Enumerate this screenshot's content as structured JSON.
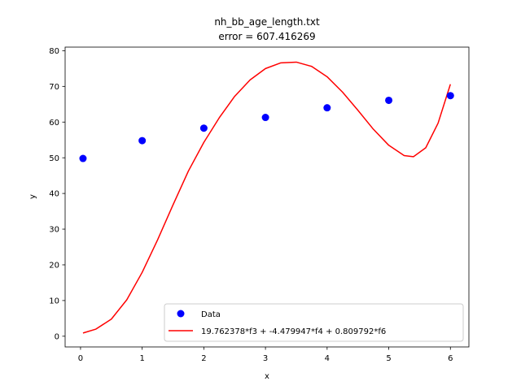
{
  "chart_data": {
    "type": "scatter",
    "title_line1": "nh_bb_age_length.txt",
    "title_line2": " error  = 607.416269",
    "xlabel": "x",
    "ylabel": "y",
    "xlim": [
      -0.25,
      6.3
    ],
    "ylim": [
      -3,
      81
    ],
    "xticks": [
      0,
      1,
      2,
      3,
      4,
      5,
      6
    ],
    "yticks": [
      0,
      10,
      20,
      30,
      40,
      50,
      60,
      70,
      80
    ],
    "grid": false,
    "legend_position": "lower-right",
    "series": [
      {
        "name": "Data",
        "kind": "scatter",
        "color": "#0000ff",
        "x": [
          0.04,
          1,
          2,
          3,
          4,
          5,
          6
        ],
        "y": [
          49.8,
          54.8,
          58.3,
          61.3,
          64,
          66.1,
          67.4
        ]
      },
      {
        "name": "19.762378*f3 + -4.479947*f4 + 0.809792*f6",
        "kind": "line",
        "color": "#ff0000",
        "x": [
          0.04,
          0.25,
          0.5,
          0.75,
          1.0,
          1.25,
          1.5,
          1.75,
          2.0,
          2.25,
          2.5,
          2.75,
          3.0,
          3.25,
          3.5,
          3.75,
          4.0,
          4.25,
          4.5,
          4.75,
          5.0,
          5.25,
          5.4,
          5.6,
          5.8,
          6.0
        ],
        "y": [
          0.9,
          2.0,
          4.8,
          10.2,
          17.9,
          27.0,
          36.8,
          46.3,
          54.3,
          61.2,
          67.2,
          71.8,
          75.0,
          76.6,
          76.8,
          75.6,
          72.7,
          68.4,
          63.3,
          58.0,
          53.5,
          50.6,
          50.3,
          52.8,
          59.7,
          70.6
        ]
      }
    ]
  }
}
